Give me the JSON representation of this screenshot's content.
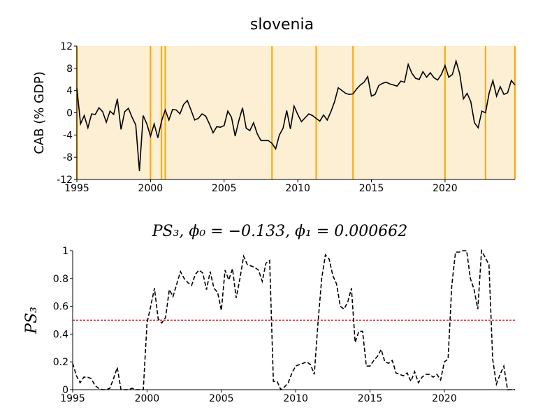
{
  "chart_data": [
    {
      "type": "line",
      "title": "slovenia",
      "ylabel": "CAB (% GDP)",
      "background": "#fdefd4",
      "color": "#000000",
      "vline_color": "#ffa500",
      "vlines": [
        1995,
        2000,
        2000.75,
        2001,
        2008.25,
        2011.25,
        2013.75,
        2020,
        2022.75,
        2024.75
      ],
      "xlim": [
        1995,
        2024.75
      ],
      "ylim": [
        -12,
        12
      ],
      "xticks": [
        1995,
        2000,
        2005,
        2010,
        2015,
        2020
      ],
      "yticks": [
        -12,
        -8,
        -4,
        0,
        4,
        8,
        12
      ],
      "x": [
        1995,
        1995.25,
        1995.5,
        1995.75,
        1996,
        1996.25,
        1996.5,
        1996.75,
        1997,
        1997.25,
        1997.5,
        1997.75,
        1998,
        1998.25,
        1998.5,
        1998.75,
        1999,
        1999.25,
        1999.5,
        1999.75,
        2000,
        2000.25,
        2000.5,
        2000.75,
        2001,
        2001.25,
        2001.5,
        2001.75,
        2002,
        2002.25,
        2002.5,
        2002.75,
        2003,
        2003.25,
        2003.5,
        2003.75,
        2004,
        2004.25,
        2004.5,
        2004.75,
        2005,
        2005.25,
        2005.5,
        2005.75,
        2006,
        2006.25,
        2006.5,
        2006.75,
        2007,
        2007.25,
        2007.5,
        2007.75,
        2008,
        2008.25,
        2008.5,
        2008.75,
        2009,
        2009.25,
        2009.5,
        2009.75,
        2010,
        2010.25,
        2010.5,
        2010.75,
        2011,
        2011.25,
        2011.5,
        2011.75,
        2012,
        2012.25,
        2012.5,
        2012.75,
        2013,
        2013.25,
        2013.5,
        2013.75,
        2014,
        2014.25,
        2014.5,
        2014.75,
        2015,
        2015.25,
        2015.5,
        2015.75,
        2016,
        2016.25,
        2016.5,
        2016.75,
        2017,
        2017.25,
        2017.5,
        2017.75,
        2018,
        2018.25,
        2018.5,
        2018.75,
        2019,
        2019.25,
        2019.5,
        2019.75,
        2020,
        2020.25,
        2020.5,
        2020.75,
        2021,
        2021.25,
        2021.5,
        2021.75,
        2022,
        2022.25,
        2022.5,
        2022.75,
        2023,
        2023.25,
        2023.5,
        2023.75,
        2024,
        2024.25,
        2024.5,
        2024.75
      ],
      "values": [
        4.5,
        -2,
        -0.5,
        -2.7,
        -0.2,
        -0.3,
        0.9,
        0.2,
        -1.7,
        0.3,
        -0.3,
        2.5,
        -3.0,
        0.2,
        0.8,
        -0.8,
        -2.2,
        -10.5,
        -0.5,
        -2.0,
        -4.2,
        -2.0,
        -4.5,
        -1.5,
        0.5,
        -1.3,
        0.6,
        0.5,
        -0.2,
        1.5,
        2.2,
        0.5,
        -1.3,
        -1.0,
        -0.2,
        -0.6,
        -2.0,
        -3.6,
        -2.5,
        -2.6,
        -2.3,
        0.3,
        -0.8,
        -4.2,
        -1.4,
        0.9,
        -2.8,
        -3.2,
        -1.8,
        -3.8,
        -5.0,
        -5.0,
        -5.0,
        -5.5,
        -6.5,
        -4.0,
        -2.8,
        0.4,
        -2.9,
        1.2,
        -0.3,
        -1.6,
        -0.9,
        -0.2,
        -0.5,
        -1.0,
        -1.5,
        -0.4,
        -1.3,
        0.2,
        2.0,
        4.5,
        4.0,
        3.5,
        3.3,
        3.4,
        4.3,
        5.0,
        5.5,
        6.5,
        3.0,
        3.3,
        4.9,
        5.3,
        5.5,
        5.2,
        5.0,
        4.8,
        5.7,
        5.5,
        8.7,
        7.1,
        6.2,
        6.0,
        7.4,
        6.4,
        7.2,
        6.3,
        5.9,
        6.9,
        8.5,
        6.4,
        6.9,
        9.3,
        7.0,
        2.5,
        3.5,
        2.0,
        -1.8,
        -2.7,
        0.3,
        0.0,
        3.6,
        5.8,
        3.0,
        4.7,
        3.3,
        3.6,
        5.8,
        5.0
      ]
    },
    {
      "type": "line",
      "title": "PS₃, ϕ₀ = −0.133, ϕ₁ = 0.000662",
      "ylabel": "PS₃",
      "color": "#000000",
      "dashed": true,
      "threshold": 0.5,
      "threshold_color": "#dd0000",
      "xlim": [
        1995,
        2024.75
      ],
      "ylim": [
        0,
        1
      ],
      "xticks": [
        1995,
        2000,
        2005,
        2010,
        2015,
        2020
      ],
      "yticks": [
        0,
        0.2,
        0.4,
        0.6,
        0.8,
        1
      ],
      "x": [
        1995,
        1995.25,
        1995.5,
        1995.75,
        1996,
        1996.25,
        1996.5,
        1996.75,
        1997,
        1997.25,
        1997.5,
        1997.75,
        1998,
        1998.25,
        1998.5,
        1998.75,
        1999,
        1999.25,
        1999.5,
        1999.75,
        2000,
        2000.25,
        2000.5,
        2000.75,
        2001,
        2001.25,
        2001.5,
        2001.75,
        2002,
        2002.25,
        2002.5,
        2002.75,
        2003,
        2003.25,
        2003.5,
        2003.75,
        2004,
        2004.25,
        2004.5,
        2004.75,
        2005,
        2005.25,
        2005.5,
        2005.75,
        2006,
        2006.25,
        2006.5,
        2006.75,
        2007,
        2007.25,
        2007.5,
        2007.75,
        2008,
        2008.25,
        2008.5,
        2008.75,
        2009,
        2009.25,
        2009.5,
        2009.75,
        2010,
        2010.25,
        2010.5,
        2010.75,
        2011,
        2011.25,
        2011.5,
        2011.75,
        2012,
        2012.25,
        2012.5,
        2012.75,
        2013,
        2013.25,
        2013.5,
        2013.75,
        2014,
        2014.25,
        2014.5,
        2014.75,
        2015,
        2015.25,
        2015.5,
        2015.75,
        2016,
        2016.25,
        2016.5,
        2016.75,
        2017,
        2017.25,
        2017.5,
        2017.75,
        2018,
        2018.25,
        2018.5,
        2018.75,
        2019,
        2019.25,
        2019.5,
        2019.75,
        2020,
        2020.25,
        2020.5,
        2020.75,
        2021,
        2021.25,
        2021.5,
        2021.75,
        2022,
        2022.25,
        2022.5,
        2022.75,
        2023,
        2023.25,
        2023.5,
        2023.75,
        2024,
        2024.25,
        2024.5,
        2024.75
      ],
      "values": [
        0.19,
        0.1,
        0.05,
        0.09,
        0.09,
        0.08,
        0.03,
        0.01,
        0.0,
        0.0,
        0.01,
        0.08,
        0.16,
        0.0,
        0.0,
        0.0,
        0.01,
        0.0,
        0.0,
        0.0,
        0.48,
        0.6,
        0.73,
        0.51,
        0.48,
        0.52,
        0.72,
        0.67,
        0.76,
        0.85,
        0.8,
        0.77,
        0.75,
        0.83,
        0.86,
        0.84,
        0.72,
        0.85,
        0.73,
        0.7,
        0.57,
        0.86,
        0.79,
        0.87,
        0.66,
        0.8,
        0.96,
        0.9,
        0.89,
        0.88,
        0.86,
        0.78,
        0.91,
        0.93,
        0.06,
        0.06,
        0.0,
        0.02,
        0.05,
        0.12,
        0.17,
        0.18,
        0.19,
        0.2,
        0.18,
        0.11,
        0.48,
        0.8,
        0.97,
        0.94,
        0.82,
        0.76,
        0.6,
        0.58,
        0.63,
        0.73,
        0.34,
        0.42,
        0.42,
        0.17,
        0.17,
        0.21,
        0.24,
        0.29,
        0.2,
        0.19,
        0.21,
        0.12,
        0.11,
        0.1,
        0.12,
        0.06,
        0.13,
        0.05,
        0.09,
        0.11,
        0.11,
        0.09,
        0.11,
        0.07,
        0.2,
        0.22,
        0.75,
        0.99,
        0.99,
        1.0,
        1.0,
        0.8,
        0.72,
        0.58,
        1.0,
        0.95,
        0.9,
        0.22,
        0.04,
        0.11,
        0.17,
        0.0,
        0.0,
        0.0
      ]
    }
  ]
}
